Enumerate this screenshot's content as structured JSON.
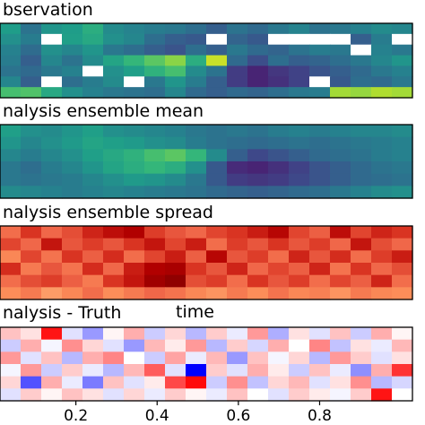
{
  "chart_data": [
    {
      "type": "heatmap",
      "title": "bservation",
      "colormap": "viridis",
      "masked_color": "#ffffff",
      "note_values": "normalized colormap position 0-1; -1 = masked/missing",
      "values": [
        [
          0.55,
          0.38,
          0.52,
          0.55,
          0.62,
          0.48,
          0.45,
          0.42,
          0.4,
          0.36,
          0.3,
          0.38,
          0.34,
          0.4,
          0.45,
          0.38,
          0.4,
          0.44,
          0.48,
          0.46
        ],
        [
          0.5,
          0.42,
          -1,
          0.56,
          0.6,
          0.5,
          0.46,
          0.36,
          0.3,
          0.28,
          -1,
          0.32,
          0.28,
          -1,
          -1,
          -1,
          -1,
          0.3,
          0.42,
          -1
        ],
        [
          0.44,
          0.35,
          0.5,
          0.46,
          0.52,
          0.4,
          0.36,
          0.3,
          0.26,
          0.36,
          0.3,
          0.4,
          0.34,
          0.32,
          0.38,
          0.42,
          0.4,
          -1,
          0.44,
          0.4
        ],
        [
          0.42,
          0.3,
          0.46,
          0.38,
          0.48,
          0.58,
          0.66,
          0.74,
          0.82,
          0.62,
          0.92,
          0.34,
          0.24,
          0.36,
          0.3,
          0.32,
          0.36,
          0.4,
          0.46,
          0.52
        ],
        [
          0.38,
          0.34,
          0.4,
          0.44,
          -1,
          0.5,
          0.56,
          0.64,
          0.7,
          0.48,
          0.38,
          0.18,
          0.1,
          0.16,
          0.2,
          0.26,
          0.3,
          0.34,
          0.4,
          0.44
        ],
        [
          0.46,
          0.3,
          -1,
          0.36,
          0.42,
          0.48,
          -1,
          0.4,
          0.52,
          0.42,
          0.3,
          0.18,
          0.1,
          0.14,
          0.2,
          -1,
          0.28,
          0.36,
          0.34,
          0.4
        ],
        [
          0.7,
          0.72,
          0.6,
          0.5,
          0.44,
          0.4,
          0.38,
          0.36,
          0.46,
          0.34,
          0.3,
          0.34,
          0.32,
          0.36,
          0.4,
          0.42,
          0.86,
          0.84,
          0.88,
          0.86
        ]
      ]
    },
    {
      "type": "heatmap",
      "title": "nalysis ensemble mean",
      "colormap": "viridis",
      "values": [
        [
          0.56,
          0.5,
          0.48,
          0.52,
          0.56,
          0.5,
          0.48,
          0.46,
          0.44,
          0.4,
          0.38,
          0.4,
          0.38,
          0.42,
          0.44,
          0.42,
          0.44,
          0.46,
          0.46,
          0.48
        ],
        [
          0.52,
          0.46,
          0.5,
          0.54,
          0.58,
          0.56,
          0.54,
          0.5,
          0.48,
          0.42,
          0.38,
          0.36,
          0.34,
          0.36,
          0.38,
          0.36,
          0.38,
          0.4,
          0.42,
          0.44
        ],
        [
          0.46,
          0.42,
          0.46,
          0.5,
          0.56,
          0.6,
          0.64,
          0.7,
          0.74,
          0.66,
          0.48,
          0.3,
          0.22,
          0.26,
          0.3,
          0.34,
          0.36,
          0.38,
          0.42,
          0.44
        ],
        [
          0.4,
          0.36,
          0.42,
          0.46,
          0.52,
          0.58,
          0.62,
          0.66,
          0.62,
          0.5,
          0.28,
          0.12,
          0.1,
          0.14,
          0.2,
          0.26,
          0.3,
          0.34,
          0.38,
          0.4
        ],
        [
          0.4,
          0.38,
          0.4,
          0.42,
          0.46,
          0.5,
          0.54,
          0.52,
          0.48,
          0.4,
          0.28,
          0.18,
          0.16,
          0.18,
          0.22,
          0.26,
          0.3,
          0.34,
          0.36,
          0.38
        ],
        [
          0.48,
          0.46,
          0.44,
          0.42,
          0.44,
          0.46,
          0.44,
          0.42,
          0.4,
          0.38,
          0.34,
          0.32,
          0.3,
          0.32,
          0.34,
          0.36,
          0.4,
          0.44,
          0.48,
          0.5
        ]
      ]
    },
    {
      "type": "heatmap",
      "title": "nalysis ensemble spread",
      "colormap": "OrRd",
      "values": [
        [
          0.6,
          0.74,
          0.62,
          0.68,
          0.78,
          0.84,
          0.88,
          0.72,
          0.66,
          0.62,
          0.7,
          0.74,
          0.8,
          0.86,
          0.7,
          0.64,
          0.84,
          0.7,
          0.78,
          0.74
        ],
        [
          0.7,
          0.62,
          0.82,
          0.66,
          0.72,
          0.66,
          0.74,
          0.82,
          0.7,
          0.8,
          0.6,
          0.72,
          0.66,
          0.74,
          0.66,
          0.72,
          0.62,
          0.82,
          0.68,
          0.62
        ],
        [
          0.52,
          0.7,
          0.58,
          0.74,
          0.64,
          0.76,
          0.6,
          0.7,
          0.8,
          0.64,
          0.86,
          0.66,
          0.72,
          0.6,
          0.78,
          0.66,
          0.76,
          0.6,
          0.72,
          0.8
        ],
        [
          0.76,
          0.56,
          0.66,
          0.58,
          0.76,
          0.62,
          0.8,
          0.88,
          0.9,
          0.74,
          0.66,
          0.78,
          0.62,
          0.7,
          0.64,
          0.78,
          0.58,
          0.74,
          0.62,
          0.68
        ],
        [
          0.6,
          0.68,
          0.72,
          0.64,
          0.56,
          0.74,
          0.82,
          0.92,
          0.96,
          0.68,
          0.72,
          0.6,
          0.74,
          0.66,
          0.72,
          0.6,
          0.7,
          0.64,
          0.78,
          0.6
        ],
        [
          0.5,
          0.56,
          0.46,
          0.52,
          0.6,
          0.5,
          0.56,
          0.62,
          0.58,
          0.52,
          0.48,
          0.56,
          0.5,
          0.58,
          0.52,
          0.54,
          0.48,
          0.56,
          0.52,
          0.5
        ]
      ]
    },
    {
      "type": "heatmap",
      "title": "nalysis - Truth",
      "colormap": "bwr",
      "values": [
        [
          0.62,
          0.56,
          0.96,
          0.44,
          0.3,
          0.52,
          0.66,
          0.4,
          0.58,
          0.36,
          0.6,
          0.46,
          0.7,
          0.34,
          0.56,
          0.44,
          0.62,
          0.4,
          0.66,
          0.52
        ],
        [
          0.4,
          0.66,
          0.48,
          0.72,
          0.58,
          0.44,
          0.3,
          0.64,
          0.54,
          0.7,
          0.36,
          0.6,
          0.42,
          0.66,
          0.5,
          0.74,
          0.38,
          0.56,
          0.46,
          0.64
        ],
        [
          0.7,
          0.44,
          0.62,
          0.36,
          0.66,
          0.74,
          0.5,
          0.4,
          0.68,
          0.46,
          0.64,
          0.3,
          0.62,
          0.48,
          0.58,
          0.36,
          0.7,
          0.6,
          0.44,
          0.56
        ],
        [
          0.48,
          0.7,
          0.4,
          0.6,
          0.46,
          0.36,
          0.64,
          0.82,
          0.44,
          0.0,
          0.6,
          0.44,
          0.66,
          0.54,
          0.4,
          0.62,
          0.46,
          0.28,
          0.66,
          0.9
        ],
        [
          0.58,
          0.16,
          0.66,
          0.46,
          0.24,
          0.62,
          0.44,
          0.54,
          0.86,
          0.98,
          0.4,
          0.72,
          0.38,
          0.58,
          0.64,
          0.44,
          0.56,
          0.72,
          0.36,
          0.42
        ],
        [
          0.44,
          0.6,
          0.52,
          0.62,
          0.56,
          0.44,
          0.58,
          0.46,
          0.6,
          0.52,
          0.46,
          0.62,
          0.5,
          0.44,
          0.6,
          0.54,
          0.48,
          0.6,
          0.96,
          0.5
        ]
      ]
    }
  ],
  "x_axis": {
    "label": "time",
    "xlim": [
      0.0,
      1.0
    ],
    "ticks": [
      0.2,
      0.4,
      0.6,
      0.8
    ],
    "tick_labels": [
      "0.2",
      "0.4",
      "0.6",
      "0.8"
    ]
  }
}
